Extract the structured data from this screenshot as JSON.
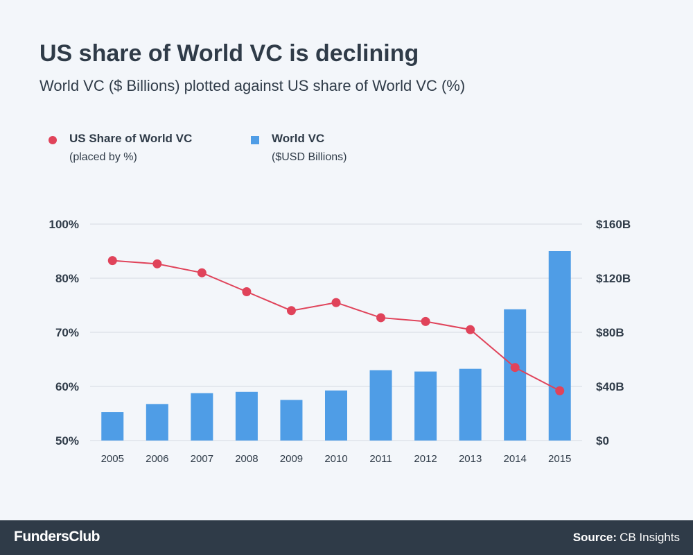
{
  "header": {
    "title": "US share of World VC is declining",
    "subtitle": "World VC ($ Billions) plotted against US share of World VC (%)"
  },
  "legend": {
    "share_title": "US Share of World VC",
    "share_sub": "(placed by %)",
    "world_title": "World VC",
    "world_sub": "($USD Billions)"
  },
  "footer": {
    "brand": "FundersClub",
    "source_label": "Source:",
    "source_value": "CB Insights"
  },
  "colors": {
    "bar": "#4f9de6",
    "line": "#e0435a",
    "text": "#2f3b48",
    "grid": "#d5dbe2",
    "footer": "#2f3b48"
  },
  "chart_data": {
    "type": "bar+line",
    "categories": [
      "2005",
      "2006",
      "2007",
      "2008",
      "2009",
      "2010",
      "2011",
      "2012",
      "2013",
      "2014",
      "2015"
    ],
    "series": [
      {
        "name": "World VC",
        "type": "bar",
        "axis": "right",
        "values": [
          21,
          27,
          35,
          36,
          30,
          37,
          52,
          51,
          53,
          97,
          140
        ]
      },
      {
        "name": "US Share of World VC",
        "type": "line",
        "axis": "left",
        "values": [
          86.5,
          85.3,
          82,
          77.5,
          74,
          75.5,
          72.7,
          72,
          70.5,
          63.5,
          59.2
        ]
      }
    ],
    "left_axis": {
      "ticks": [
        {
          "value": 100,
          "label": "100%"
        },
        {
          "value": 80,
          "label": "80%"
        },
        {
          "value": 70,
          "label": "70%"
        },
        {
          "value": 60,
          "label": "60%"
        },
        {
          "value": 50,
          "label": "50%"
        }
      ]
    },
    "right_axis": {
      "ylim": [
        0,
        160
      ],
      "ticks": [
        {
          "value": 160,
          "label": "$160B"
        },
        {
          "value": 120,
          "label": "$120B"
        },
        {
          "value": 80,
          "label": "$80B"
        },
        {
          "value": 40,
          "label": "$40B"
        },
        {
          "value": 0,
          "label": "$0"
        }
      ]
    },
    "grid": true,
    "legend_position": "top-left"
  }
}
